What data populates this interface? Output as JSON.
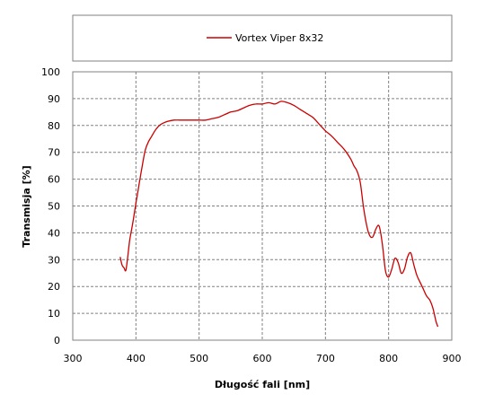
{
  "chart_data": {
    "type": "line",
    "xlabel": "Długość fali [nm]",
    "ylabel": "Transmisja [%]",
    "xlim": [
      300,
      900
    ],
    "ylim": [
      0,
      100
    ],
    "xticks": [
      300,
      400,
      500,
      600,
      700,
      800,
      900
    ],
    "yticks": [
      0,
      10,
      20,
      30,
      40,
      50,
      60,
      70,
      80,
      90,
      100
    ],
    "grid": true,
    "legend_position": "top",
    "series": [
      {
        "name": "Vortex Viper 8x32",
        "color": "#cc0000",
        "x": [
          375,
          378,
          381,
          384,
          387,
          390,
          393,
          396,
          400,
          405,
          410,
          415,
          420,
          425,
          430,
          435,
          440,
          450,
          460,
          470,
          480,
          490,
          500,
          510,
          520,
          530,
          540,
          550,
          560,
          570,
          580,
          590,
          600,
          610,
          620,
          630,
          640,
          650,
          660,
          670,
          680,
          690,
          700,
          710,
          720,
          730,
          740,
          745,
          750,
          755,
          760,
          765,
          770,
          775,
          780,
          785,
          790,
          795,
          800,
          805,
          810,
          815,
          820,
          825,
          830,
          835,
          840,
          845,
          850,
          855,
          860,
          865,
          870,
          875,
          878
        ],
        "y": [
          31,
          28,
          27,
          26,
          31,
          37,
          41,
          45,
          51,
          58,
          65,
          71,
          74,
          76,
          78,
          79.5,
          80.5,
          81.5,
          82,
          82,
          82,
          82,
          82,
          82,
          82.5,
          83,
          84,
          85,
          85.5,
          86.5,
          87.5,
          88,
          88,
          88.5,
          88,
          89,
          88.5,
          87.5,
          86,
          84.5,
          83,
          80.5,
          78,
          76,
          73.5,
          71,
          67.5,
          65,
          63,
          59,
          50,
          43,
          39,
          38.5,
          41.5,
          42.5,
          36,
          26,
          23.5,
          26.5,
          30.5,
          29,
          25,
          26.5,
          31,
          32.5,
          28,
          24,
          21.5,
          19,
          16.5,
          15,
          12,
          7,
          5
        ]
      }
    ]
  }
}
